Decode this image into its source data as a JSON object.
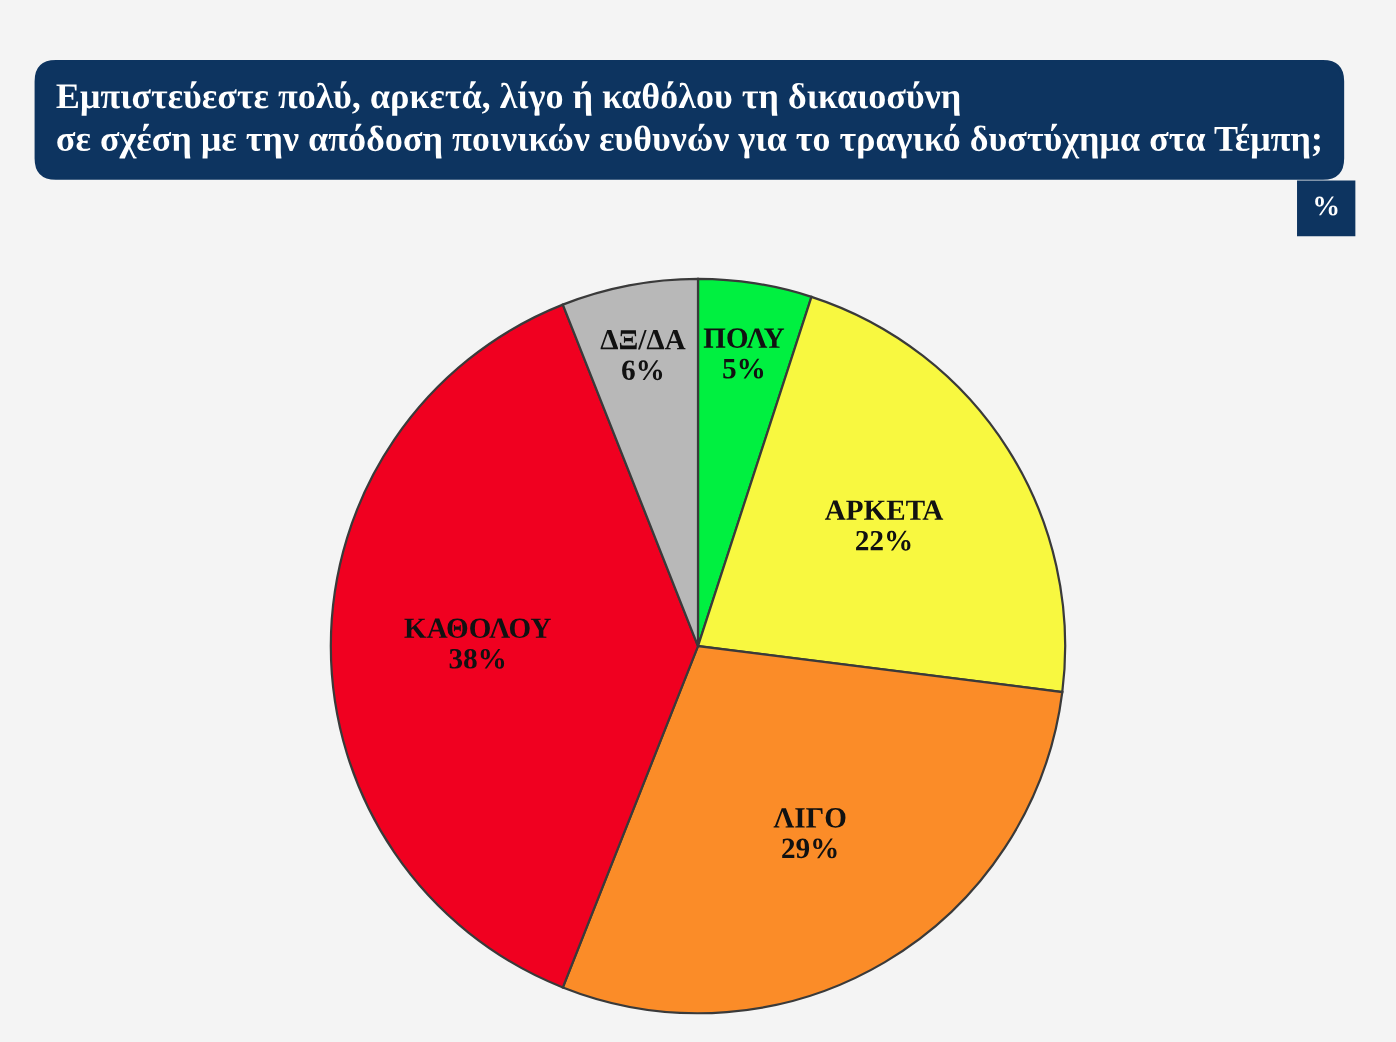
{
  "chart_data": {
    "type": "pie",
    "title": "Εμπιστεύεστε πολύ, αρκετά, λίγο ή καθόλου τη δικαιοσύνη\nσε σχέση με την απόδοση ποινικών ευθυνών για το τραγικό δυστύχημα στα Τέμπη;",
    "categories": [
      "ΠΟΛΥ",
      "ΑΡΚΕΤΑ",
      "ΛΙΓΟ",
      "ΚΑΘΟΛΟΥ",
      "ΔΞ/ΔΑ"
    ],
    "values": [
      5,
      22,
      29,
      38,
      6
    ],
    "value_labels": [
      "5%",
      "22%",
      "29%",
      "38%",
      "6%"
    ],
    "colors": [
      "#00f040",
      "#f8f840",
      "#fb8c28",
      "#f00020",
      "#b8b8b8"
    ],
    "annotations": [
      "%"
    ]
  }
}
